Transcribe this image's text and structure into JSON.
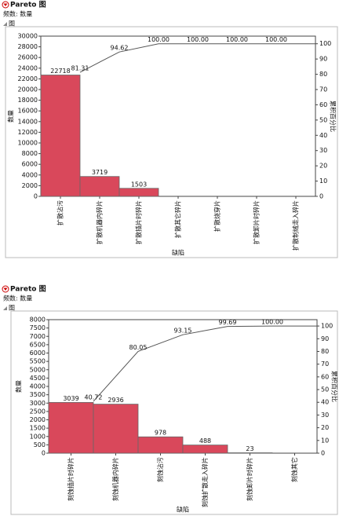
{
  "chart_data": [
    {
      "type": "pareto",
      "title": "Pareto 图",
      "subtitle": "频数: 数量",
      "outline": "图",
      "y_label": "数量",
      "y2_label": "累积百分比",
      "x_label": "缺陷",
      "categories": [
        "扩散沾污",
        "扩散机器内碎片",
        "扩散插片时碎片",
        "扩散其它碎片",
        "扩散烧穿片",
        "扩散卸片时碎片",
        "扩散制绒走入碎片"
      ],
      "series": [
        {
          "color": "#d9485b",
          "values": [
            22718,
            3719,
            1503,
            0,
            0,
            0,
            0
          ],
          "value_labels": [
            "22718",
            "3719",
            "1503",
            null,
            null,
            null,
            null
          ]
        },
        {
          "axis": "y2",
          "color": "#555555",
          "values": [
            81.31,
            94.62,
            100,
            100,
            100,
            100,
            100
          ],
          "value_labels": [
            "81.31",
            "94.62",
            "100.00",
            "100.00",
            "100.00",
            "100.00",
            null
          ]
        }
      ],
      "ylim": [
        0,
        30000
      ],
      "yticks": [
        0,
        2000,
        4000,
        6000,
        8000,
        10000,
        12000,
        14000,
        16000,
        18000,
        20000,
        22000,
        24000,
        26000,
        28000,
        30000
      ],
      "y2lim": [
        0,
        105
      ],
      "y2ticks": [
        0,
        10,
        20,
        30,
        40,
        50,
        60,
        70,
        80,
        90,
        100
      ]
    },
    {
      "type": "pareto",
      "title": "Pareto 图",
      "subtitle": "频数: 数量",
      "outline": "图",
      "y_label": "数量",
      "y2_label": "累积百分比",
      "x_label": "缺陷",
      "categories": [
        "刻蚀插片时碎片",
        "刻蚀机器内碎片",
        "刻蚀沾污",
        "刻蚀扩散走入碎片",
        "刻蚀卸片时碎片",
        "刻蚀其它"
      ],
      "series": [
        {
          "color": "#d9485b",
          "values": [
            3039,
            2936,
            978,
            488,
            23,
            0
          ],
          "value_labels": [
            "3039",
            "2936",
            "978",
            "488",
            "23",
            null
          ]
        },
        {
          "axis": "y2",
          "color": "#555555",
          "values": [
            40.72,
            80.05,
            93.15,
            99.69,
            100,
            100
          ],
          "value_labels": [
            "40.72",
            "80.05",
            "93.15",
            "99.69",
            "100.00",
            null
          ]
        }
      ],
      "ylim": [
        0,
        8000
      ],
      "yticks": [
        0,
        500,
        1000,
        1500,
        2000,
        2500,
        3000,
        3500,
        4000,
        4500,
        5000,
        5500,
        6000,
        6500,
        7000,
        7500,
        8000
      ],
      "y2lim": [
        0,
        105
      ],
      "y2ticks": [
        0,
        10,
        20,
        30,
        40,
        50,
        60,
        70,
        80,
        90,
        100
      ]
    }
  ]
}
